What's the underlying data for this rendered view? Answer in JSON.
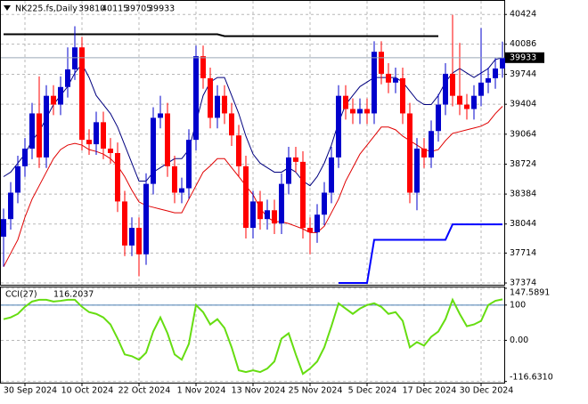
{
  "chart_data": [
    {
      "type": "candlestick",
      "title": "NK225.fs,Daily",
      "categories": [
        null,
        null,
        null,
        "30 Sep 2024",
        null,
        null,
        null,
        null,
        null,
        null,
        null,
        "10 Oct 2024",
        null,
        null,
        null,
        null,
        null,
        null,
        null,
        "22 Oct 2024",
        null,
        null,
        null,
        null,
        null,
        null,
        null,
        "1 Nov 2024",
        null,
        null,
        null,
        null,
        null,
        null,
        null,
        "13 Nov 2024",
        null,
        null,
        null,
        null,
        null,
        null,
        null,
        "25 Nov 2024",
        null,
        null,
        null,
        null,
        null,
        null,
        null,
        "5 Dec 2024",
        null,
        null,
        null,
        null,
        null,
        null,
        null,
        "17 Dec 2024",
        null,
        null,
        null,
        null,
        null,
        null,
        null,
        "30 Dec 2024",
        null,
        null,
        null
      ],
      "open": [
        37900,
        38100,
        38400,
        38700,
        38900,
        39300,
        38800,
        39500,
        39400,
        39600,
        39800,
        40050,
        39000,
        38950,
        39200,
        38900,
        38850,
        38300,
        37800,
        38000,
        37700,
        38500,
        39250,
        39300,
        38700,
        38400,
        38450,
        39000,
        39950,
        39700,
        39250,
        39500,
        39300,
        39050,
        38700,
        38000,
        38300,
        38100,
        38200,
        38050,
        38500,
        38800,
        38750,
        38000,
        37950,
        38150,
        38400,
        38800,
        39500,
        39350,
        39300,
        39350,
        39300,
        40000,
        39750,
        39650,
        39700,
        39300,
        38400,
        38900,
        38800,
        39100,
        39400,
        39750,
        39500,
        39400,
        39350,
        39500,
        39650,
        39700,
        39810
      ],
      "high": [
        38220,
        38520,
        38820,
        39020,
        39420,
        39720,
        39620,
        39620,
        39720,
        40050,
        40290,
        40170,
        39120,
        39320,
        39320,
        39020,
        38970,
        38420,
        38120,
        38120,
        38620,
        39370,
        39500,
        39420,
        38820,
        38570,
        39120,
        40070,
        40070,
        39820,
        39620,
        39620,
        39420,
        39170,
        38820,
        38420,
        38420,
        38320,
        38320,
        38620,
        38920,
        38920,
        38870,
        38120,
        38270,
        38520,
        38920,
        39620,
        39620,
        39470,
        39470,
        39470,
        40120,
        40120,
        39870,
        39820,
        39820,
        39420,
        39020,
        39020,
        39220,
        39520,
        39870,
        40420,
        40100,
        39520,
        39620,
        40270,
        39820,
        39930,
        40115
      ],
      "low": [
        37560,
        37980,
        38280,
        38580,
        38780,
        38680,
        38680,
        39280,
        39280,
        39480,
        39680,
        38880,
        38830,
        38830,
        38780,
        38730,
        38180,
        37680,
        37680,
        37450,
        37580,
        38380,
        39130,
        38580,
        38280,
        38280,
        38330,
        38880,
        39580,
        39130,
        39130,
        39180,
        38930,
        38580,
        37880,
        37880,
        37980,
        37980,
        37930,
        37930,
        38380,
        38630,
        37880,
        37700,
        37830,
        38030,
        38280,
        38680,
        39230,
        39180,
        39180,
        39180,
        39180,
        39630,
        39530,
        39530,
        39180,
        38280,
        38200,
        38680,
        38680,
        38980,
        39280,
        39380,
        39280,
        39230,
        39230,
        39380,
        39530,
        39580,
        39705
      ],
      "close": [
        38100,
        38400,
        38700,
        38900,
        39300,
        38800,
        39500,
        39400,
        39600,
        39800,
        40050,
        39000,
        38950,
        39200,
        38900,
        38850,
        38300,
        37800,
        38000,
        37700,
        38500,
        39250,
        39300,
        38700,
        38400,
        38450,
        39000,
        39950,
        39700,
        39250,
        39500,
        39300,
        39050,
        38700,
        38000,
        38300,
        38100,
        38200,
        38050,
        38500,
        38800,
        38750,
        38000,
        37950,
        38150,
        38400,
        38800,
        39500,
        39350,
        39300,
        39350,
        39300,
        40000,
        39750,
        39650,
        39700,
        39300,
        38400,
        38900,
        38800,
        39100,
        39400,
        39750,
        39500,
        39400,
        39350,
        39500,
        39650,
        39700,
        39810,
        39933
      ],
      "up_color": "#0000cc",
      "down_color": "#ff0000",
      "lines": [
        {
          "color": "#00007f",
          "values": [
            38582,
            38633,
            38735,
            38838,
            38991,
            39093,
            39247,
            39400,
            39503,
            39605,
            39759,
            39861,
            39708,
            39503,
            39400,
            39298,
            39145,
            38940,
            38735,
            38531,
            38531,
            38633,
            38684,
            38735,
            38786,
            38786,
            38889,
            39196,
            39503,
            39656,
            39708,
            39708,
            39503,
            39298,
            39042,
            38838,
            38735,
            38684,
            38633,
            38633,
            38684,
            38633,
            38531,
            38479,
            38582,
            38735,
            38940,
            39196,
            39400,
            39503,
            39605,
            39656,
            39708,
            39708,
            39708,
            39708,
            39656,
            39554,
            39452,
            39400,
            39400,
            39503,
            39656,
            39759,
            39810,
            39759,
            39708,
            39759,
            39810,
            39912,
            39933
          ]
        },
        {
          "color": "#e00000",
          "values": [
            37558,
            37712,
            37865,
            38121,
            38326,
            38479,
            38633,
            38786,
            38889,
            38940,
            38960,
            38940,
            38889,
            38868,
            38838,
            38786,
            38705,
            38582,
            38428,
            38295,
            38254,
            38234,
            38213,
            38193,
            38172,
            38172,
            38326,
            38479,
            38633,
            38705,
            38786,
            38786,
            38684,
            38582,
            38479,
            38377,
            38223,
            38121,
            38070,
            38070,
            38049,
            38019,
            37988,
            37947,
            37947,
            38019,
            38172,
            38326,
            38531,
            38684,
            38838,
            38940,
            39042,
            39145,
            39145,
            39114,
            39042,
            38991,
            38940,
            38889,
            38868,
            38889,
            38991,
            39073,
            39093,
            39114,
            39134,
            39155,
            39196,
            39298,
            39380
          ]
        },
        {
          "color": "#000000",
          "values": [
            40199,
            40199,
            40199,
            40199,
            40199,
            40199,
            40199,
            40199,
            40199,
            40199,
            40199,
            40199,
            40199,
            40199,
            40199,
            40199,
            40199,
            40199,
            40199,
            40199,
            40199,
            40199,
            40199,
            40199,
            40199,
            40199,
            40199,
            40199,
            40199,
            40199,
            40199,
            40178,
            40178,
            40178,
            40178,
            40178,
            40178,
            40178,
            40178,
            40178,
            40178,
            40178,
            40178,
            40178,
            40178,
            40178,
            40178,
            40178,
            40178,
            40178,
            40178,
            40178,
            40178,
            40178,
            40178,
            40178,
            40178,
            40178,
            40178,
            40178,
            40178,
            40178,
            null,
            null,
            null,
            null,
            null,
            null,
            null,
            null,
            null
          ]
        },
        {
          "color": "#0000ff",
          "values": [
            null,
            null,
            null,
            null,
            null,
            null,
            null,
            null,
            null,
            null,
            null,
            null,
            null,
            null,
            null,
            null,
            null,
            null,
            null,
            null,
            null,
            null,
            null,
            null,
            null,
            null,
            null,
            null,
            null,
            null,
            null,
            null,
            null,
            null,
            null,
            null,
            null,
            null,
            null,
            null,
            null,
            null,
            null,
            null,
            null,
            null,
            null,
            37374,
            37374,
            37374,
            37374,
            37374,
            37865,
            37865,
            37865,
            37865,
            37865,
            37865,
            37865,
            37865,
            37865,
            37865,
            37865,
            38040,
            38040,
            38040,
            38040,
            38040,
            38040,
            38040,
            38040
          ]
        }
      ],
      "ylim": [
        37354,
        40578
      ],
      "yticks": [
        40424,
        40086,
        39744,
        39404,
        39064,
        38724,
        38384,
        38044,
        37714,
        37374
      ],
      "grid": true
    },
    {
      "type": "line",
      "title": "CCI(27)",
      "values": [
        60,
        65,
        75,
        95,
        110,
        115,
        115,
        110,
        112,
        115,
        115,
        95,
        80,
        75,
        65,
        45,
        5,
        -40,
        -45,
        -55,
        -35,
        25,
        65,
        20,
        -40,
        -55,
        -10,
        100,
        80,
        45,
        60,
        35,
        -20,
        -85,
        -90,
        -85,
        -90,
        -80,
        -60,
        5,
        20,
        -40,
        -95,
        -80,
        -60,
        -20,
        40,
        105,
        90,
        75,
        90,
        100,
        105,
        95,
        75,
        80,
        55,
        -20,
        -5,
        -15,
        10,
        25,
        60,
        115,
        75,
        40,
        45,
        55,
        100,
        112,
        116.2037
      ],
      "color": "#66dd11",
      "level": 100,
      "level_color": "#4a7fb5",
      "ylim": [
        -120,
        150
      ],
      "yticks": [
        147.5891,
        100,
        {
          "value": 0,
          "label": "0.00"
        },
        {
          "value": -116.631,
          "label": "-116.6310"
        }
      ],
      "grid": true
    }
  ]
}
